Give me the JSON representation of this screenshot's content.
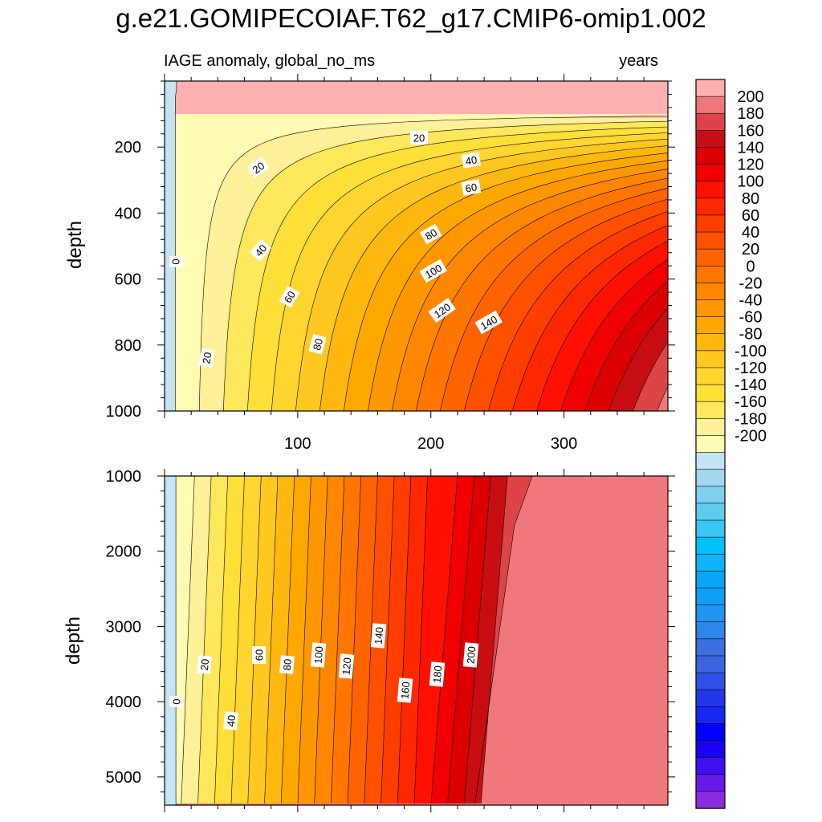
{
  "chart_data": {
    "type": "contour",
    "title": "g.e21.GOMIPECOIAF.T62_g17.CMIP6-omip1.002",
    "variable_label": "IAGE anomaly, global_no_ms",
    "units_label": "years",
    "ylabel": "depth",
    "xlim": [
      0,
      378
    ],
    "x_ticks": [
      100,
      200,
      300
    ],
    "upper_panel": {
      "ylim": [
        0,
        1000
      ],
      "y_ticks": [
        200,
        400,
        600,
        800,
        1000
      ],
      "contour_labels": [
        "0",
        "20",
        "20",
        "20",
        "40",
        "40",
        "60",
        "60",
        "80",
        "80",
        "100",
        "120",
        "140"
      ]
    },
    "lower_panel": {
      "ylim": [
        1000,
        5375
      ],
      "y_ticks": [
        1000,
        2000,
        3000,
        4000,
        5000
      ],
      "contour_labels": [
        "0",
        "20",
        "40",
        "60",
        "80",
        "100",
        "120",
        "140",
        "160",
        "180",
        "200"
      ]
    },
    "colorbar": {
      "levels": [
        -210,
        -200,
        -190,
        -180,
        -170,
        -160,
        -150,
        -140,
        -130,
        -120,
        -110,
        -100,
        -90,
        -80,
        -70,
        -60,
        -50,
        -40,
        -30,
        -20,
        -10,
        0,
        10,
        20,
        30,
        40,
        50,
        60,
        70,
        80,
        90,
        100,
        110,
        120,
        130,
        140,
        150,
        160,
        170,
        180,
        190,
        200,
        210
      ],
      "tick_labels": [
        "200",
        "180",
        "160",
        "140",
        "120",
        "100",
        "80",
        "60",
        "40",
        "20",
        "0",
        "-20",
        "-40",
        "-60",
        "-80",
        "-100",
        "-120",
        "-140",
        "-160",
        "-180",
        "-200"
      ],
      "colors": [
        "#8a2be2",
        "#6a1ae8",
        "#3f0ff0",
        "#1a00f5",
        "#0000ff",
        "#1428f0",
        "#2238e8",
        "#3050e8",
        "#3a64e0",
        "#3c70e0",
        "#2f86ea",
        "#1f94f0",
        "#109ef4",
        "#0aa6f6",
        "#10b4f8",
        "#00c0fa",
        "#38c6f2",
        "#60cbf0",
        "#80d0f0",
        "#a0d8f0",
        "#c4e4f4",
        "#fffbb2",
        "#fff09a",
        "#ffe85c",
        "#ffe038",
        "#ffd530",
        "#ffc820",
        "#ffb810",
        "#ffa800",
        "#ff9700",
        "#ff8600",
        "#ff7600",
        "#ff6400",
        "#ff5000",
        "#ff3e00",
        "#ff2800",
        "#ff1000",
        "#f00000",
        "#dc0000",
        "#c80e12",
        "#dc4448",
        "#f0787c",
        "#ffb0b0"
      ]
    }
  }
}
